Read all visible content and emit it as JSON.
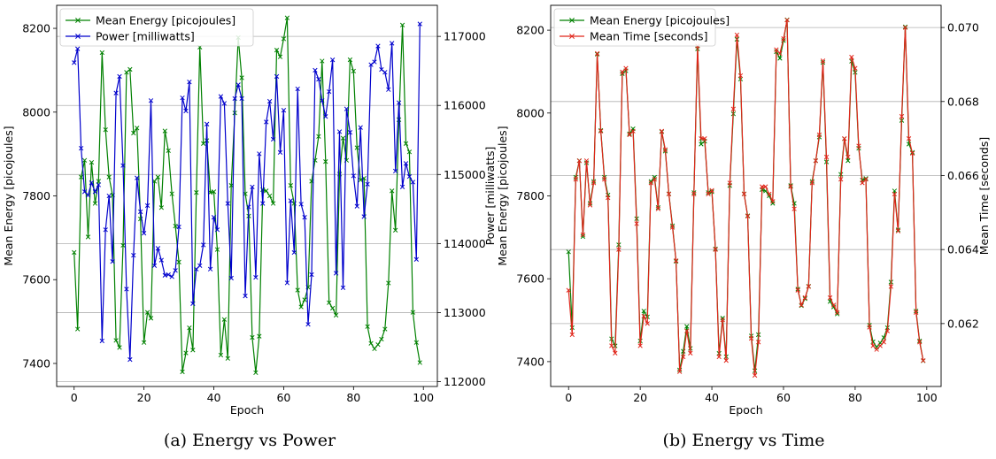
{
  "chart_data": [
    {
      "type": "line",
      "caption": "(a) Energy vs Power",
      "xlabel": "Epoch",
      "ylabel": "Mean Energy [picojoules]",
      "y2label": "Power [milliwatts]",
      "xlim": [
        -5,
        104
      ],
      "ylim": [
        7345,
        8255
      ],
      "y2lim": [
        111930,
        117450
      ],
      "xticks": [
        0,
        20,
        40,
        60,
        80,
        100
      ],
      "yticks": [
        7400,
        7600,
        7800,
        8000,
        8200
      ],
      "y2ticks": [
        112000,
        113000,
        114000,
        115000,
        116000,
        117000
      ],
      "grid": "right-axis horizontal",
      "legend": "top-left",
      "series": [
        {
          "name": "Mean Energy [picojoules]",
          "axis": "left",
          "color": "#008000",
          "x": [
            0,
            1,
            2,
            3,
            4,
            5,
            6,
            7,
            8,
            9,
            10,
            11,
            12,
            13,
            14,
            15,
            16,
            17,
            18,
            19,
            20,
            21,
            22,
            23,
            24,
            25,
            26,
            27,
            28,
            29,
            30,
            31,
            32,
            33,
            34,
            35,
            36,
            37,
            38,
            39,
            40,
            41,
            42,
            43,
            44,
            45,
            46,
            47,
            48,
            49,
            50,
            51,
            52,
            53,
            54,
            55,
            56,
            57,
            58,
            59,
            60,
            61,
            62,
            63,
            64,
            65,
            66,
            67,
            68,
            69,
            70,
            71,
            72,
            73,
            74,
            75,
            76,
            77,
            78,
            79,
            80,
            81,
            82,
            83,
            84,
            85,
            86,
            87,
            88,
            89,
            90,
            91,
            92,
            93,
            94,
            95,
            96,
            97,
            98,
            99
          ],
          "values": [
            7665,
            7482,
            7845,
            7885,
            7702,
            7880,
            7782,
            7835,
            8142,
            7958,
            7845,
            7802,
            7455,
            7438,
            7682,
            8095,
            8102,
            7950,
            7962,
            7745,
            7450,
            7522,
            7508,
            7835,
            7845,
            7772,
            7955,
            7908,
            7805,
            7728,
            7642,
            7380,
            7425,
            7485,
            7432,
            7808,
            8155,
            7925,
            7932,
            7808,
            7810,
            7672,
            7420,
            7505,
            7412,
            7825,
            7998,
            8178,
            8082,
            7805,
            7752,
            7462,
            7378,
            7465,
            7815,
            7812,
            7800,
            7782,
            8148,
            8132,
            8175,
            8225,
            7825,
            7782,
            7575,
            7535,
            7552,
            7582,
            7835,
            7885,
            7942,
            8122,
            7882,
            7545,
            7532,
            7515,
            7852,
            7938,
            7885,
            8125,
            8098,
            7915,
            7838,
            7842,
            7488,
            7448,
            7435,
            7445,
            7458,
            7482,
            7592,
            7812,
            7718,
            7982,
            8208,
            7925,
            7905,
            7522,
            7450,
            7402
          ]
        },
        {
          "name": "Power [milliwatts]",
          "axis": "right",
          "color": "#0000cc",
          "x": [
            0,
            1,
            2,
            3,
            4,
            5,
            6,
            7,
            8,
            9,
            10,
            11,
            12,
            13,
            14,
            15,
            16,
            17,
            18,
            19,
            20,
            21,
            22,
            23,
            24,
            25,
            26,
            27,
            28,
            29,
            30,
            31,
            32,
            33,
            34,
            35,
            36,
            37,
            38,
            39,
            40,
            41,
            42,
            43,
            44,
            45,
            46,
            47,
            48,
            49,
            50,
            51,
            52,
            53,
            54,
            55,
            56,
            57,
            58,
            59,
            60,
            61,
            62,
            63,
            64,
            65,
            66,
            67,
            68,
            69,
            70,
            71,
            72,
            73,
            74,
            75,
            76,
            77,
            78,
            79,
            80,
            81,
            82,
            83,
            84,
            85,
            86,
            87,
            88,
            89,
            90,
            91,
            92,
            93,
            94,
            95,
            96,
            97,
            98,
            99
          ],
          "values": [
            116620,
            116820,
            115380,
            114750,
            114700,
            114880,
            114750,
            114850,
            112590,
            114200,
            114690,
            113740,
            116180,
            116420,
            115130,
            113340,
            112320,
            113830,
            114950,
            114460,
            114150,
            114550,
            116070,
            113680,
            113930,
            113760,
            113540,
            113550,
            113520,
            113610,
            114240,
            116110,
            115920,
            116340,
            113130,
            113630,
            113680,
            113980,
            115730,
            113630,
            114380,
            114200,
            116130,
            116030,
            114580,
            113500,
            116100,
            116300,
            116100,
            113240,
            114530,
            114820,
            113510,
            115300,
            114580,
            115760,
            116060,
            115510,
            116420,
            115320,
            115930,
            113430,
            114620,
            113870,
            116240,
            114570,
            114380,
            112830,
            113550,
            116510,
            116380,
            116070,
            115840,
            116200,
            116660,
            113570,
            115620,
            113360,
            115950,
            115610,
            114980,
            114540,
            115680,
            114390,
            114860,
            116590,
            116630,
            116860,
            116520,
            116480,
            116230,
            116900,
            115050,
            116040,
            114820,
            115160,
            114970,
            114890,
            113770,
            117180
          ]
        }
      ]
    },
    {
      "type": "line",
      "caption": "(b) Energy vs Time",
      "xlabel": "Epoch",
      "ylabel": "Mean Energy [picojoules]",
      "y2label": "Mean Time [seconds]",
      "xlim": [
        -5,
        104
      ],
      "ylim": [
        7340,
        8260
      ],
      "y2lim": [
        0.0603,
        0.0706
      ],
      "xticks": [
        0,
        20,
        40,
        60,
        80,
        100
      ],
      "yticks": [
        7400,
        7600,
        7800,
        8000,
        8200
      ],
      "y2ticks": [
        0.062,
        0.064,
        0.066,
        0.068,
        0.07
      ],
      "y2tick_labels": [
        "0.062",
        "0.064",
        "0.066",
        "0.068",
        "0.070"
      ],
      "grid": "right-axis horizontal",
      "legend": "top-left",
      "series": [
        {
          "name": "Mean Energy [picojoules]",
          "axis": "left",
          "color": "#008000",
          "x": [
            0,
            1,
            2,
            3,
            4,
            5,
            6,
            7,
            8,
            9,
            10,
            11,
            12,
            13,
            14,
            15,
            16,
            17,
            18,
            19,
            20,
            21,
            22,
            23,
            24,
            25,
            26,
            27,
            28,
            29,
            30,
            31,
            32,
            33,
            34,
            35,
            36,
            37,
            38,
            39,
            40,
            41,
            42,
            43,
            44,
            45,
            46,
            47,
            48,
            49,
            50,
            51,
            52,
            53,
            54,
            55,
            56,
            57,
            58,
            59,
            60,
            61,
            62,
            63,
            64,
            65,
            66,
            67,
            68,
            69,
            70,
            71,
            72,
            73,
            74,
            75,
            76,
            77,
            78,
            79,
            80,
            81,
            82,
            83,
            84,
            85,
            86,
            87,
            88,
            89,
            90,
            91,
            92,
            93,
            94,
            95,
            96,
            97,
            98,
            99
          ],
          "values": [
            7665,
            7482,
            7845,
            7885,
            7702,
            7880,
            7782,
            7835,
            8142,
            7958,
            7845,
            7802,
            7455,
            7438,
            7682,
            8095,
            8102,
            7950,
            7962,
            7745,
            7450,
            7522,
            7508,
            7835,
            7845,
            7772,
            7955,
            7908,
            7805,
            7728,
            7642,
            7380,
            7425,
            7485,
            7432,
            7808,
            8155,
            7925,
            7932,
            7808,
            7810,
            7672,
            7420,
            7505,
            7412,
            7825,
            7998,
            8178,
            8082,
            7805,
            7752,
            7462,
            7378,
            7465,
            7815,
            7812,
            7800,
            7782,
            8148,
            8132,
            8175,
            8225,
            7825,
            7782,
            7575,
            7535,
            7552,
            7582,
            7835,
            7885,
            7942,
            8122,
            7882,
            7545,
            7532,
            7515,
            7852,
            7938,
            7885,
            8125,
            8098,
            7915,
            7838,
            7842,
            7488,
            7448,
            7435,
            7445,
            7458,
            7482,
            7592,
            7812,
            7718,
            7982,
            8208,
            7925,
            7905,
            7522,
            7450,
            7402
          ]
        },
        {
          "name": "Mean Time [seconds]",
          "axis": "right",
          "color": "#e0261b",
          "x": [
            0,
            1,
            2,
            3,
            4,
            5,
            6,
            7,
            8,
            9,
            10,
            11,
            12,
            13,
            14,
            15,
            16,
            17,
            18,
            19,
            20,
            21,
            22,
            23,
            24,
            25,
            26,
            27,
            28,
            29,
            30,
            31,
            32,
            33,
            34,
            35,
            36,
            37,
            38,
            39,
            40,
            41,
            42,
            43,
            44,
            45,
            46,
            47,
            48,
            49,
            50,
            51,
            52,
            53,
            54,
            55,
            56,
            57,
            58,
            59,
            60,
            61,
            62,
            63,
            64,
            65,
            66,
            67,
            68,
            69,
            70,
            71,
            72,
            73,
            74,
            75,
            76,
            77,
            78,
            79,
            80,
            81,
            82,
            83,
            84,
            85,
            86,
            87,
            88,
            89,
            90,
            91,
            92,
            93,
            94,
            95,
            96,
            97,
            98,
            99
          ],
          "values": [
            0.0629,
            0.0617,
            0.0659,
            0.0664,
            0.0644,
            0.0664,
            0.0652,
            0.0658,
            0.0693,
            0.0672,
            0.0659,
            0.0654,
            0.0614,
            0.0612,
            0.064,
            0.0688,
            0.0689,
            0.0671,
            0.0672,
            0.0647,
            0.0614,
            0.0622,
            0.062,
            0.0658,
            0.0659,
            0.0651,
            0.0672,
            0.0667,
            0.0655,
            0.0646,
            0.0637,
            0.0607,
            0.0611,
            0.0618,
            0.0612,
            0.0655,
            0.0695,
            0.067,
            0.067,
            0.0655,
            0.0656,
            0.064,
            0.0611,
            0.0621,
            0.061,
            0.0658,
            0.0678,
            0.0698,
            0.0687,
            0.0655,
            0.0649,
            0.0616,
            0.0606,
            0.0615,
            0.0657,
            0.0657,
            0.0655,
            0.0653,
            0.0694,
            0.0693,
            0.0697,
            0.0702,
            0.0657,
            0.0651,
            0.0629,
            0.0625,
            0.0627,
            0.063,
            0.0658,
            0.0664,
            0.0671,
            0.0691,
            0.0665,
            0.0627,
            0.0625,
            0.0623,
            0.0659,
            0.067,
            0.0665,
            0.0692,
            0.0689,
            0.0668,
            0.0658,
            0.0659,
            0.0619,
            0.0614,
            0.0613,
            0.0614,
            0.0615,
            0.0618,
            0.063,
            0.0655,
            0.0645,
            0.0676,
            0.07,
            0.067,
            0.0666,
            0.0623,
            0.0615,
            0.061
          ]
        }
      ]
    }
  ]
}
